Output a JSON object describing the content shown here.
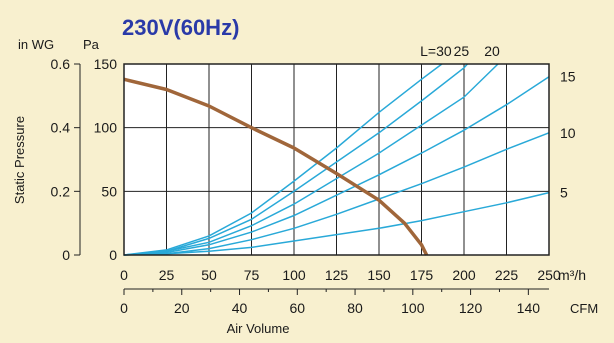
{
  "chart_data": {
    "type": "line",
    "title": "230V(60Hz)",
    "xlabel": "Air Volume",
    "ylabel": "Static Pressure",
    "x_unit_primary": "m³/h",
    "x_unit_secondary": "CFM",
    "y_unit_left_outer": "in WG",
    "y_unit_left_inner": "Pa",
    "xlim": [
      0,
      250
    ],
    "ylim": [
      0,
      150
    ],
    "x_ticks_primary": [
      0,
      25,
      50,
      75,
      100,
      125,
      150,
      175,
      200,
      225,
      250
    ],
    "x_ticks_secondary": [
      0,
      20,
      40,
      60,
      80,
      100,
      120,
      140
    ],
    "y_ticks_pa": [
      0,
      50,
      100,
      150
    ],
    "y_ticks_inwg": [
      "0",
      "0.2",
      "0.4",
      "0.6"
    ],
    "grid": true,
    "fan_curve": {
      "color": "#a0663a",
      "x": [
        0,
        25,
        50,
        75,
        100,
        125,
        150,
        165,
        175,
        178
      ],
      "y": [
        138,
        130,
        117,
        100,
        84,
        64,
        43,
        25,
        8,
        0
      ]
    },
    "system_curves": {
      "color": "#29a9d8",
      "curves": [
        {
          "label": "L=30",
          "x": [
            0,
            25,
            50,
            75,
            100,
            125,
            150,
            175,
            187
          ],
          "y": [
            0,
            4,
            15,
            33,
            58,
            84,
            112,
            138,
            150
          ]
        },
        {
          "label": "25",
          "x": [
            0,
            25,
            50,
            75,
            100,
            125,
            150,
            175,
            200,
            202
          ],
          "y": [
            0,
            3,
            13,
            28,
            50,
            73,
            96,
            121,
            147,
            150
          ]
        },
        {
          "label": "20",
          "x": [
            0,
            25,
            50,
            75,
            100,
            125,
            150,
            175,
            200,
            220
          ],
          "y": [
            0,
            3,
            10,
            23,
            40,
            60,
            80,
            102,
            124,
            150
          ]
        },
        {
          "label": "15",
          "x": [
            0,
            25,
            50,
            75,
            100,
            125,
            150,
            175,
            200,
            225,
            250
          ],
          "y": [
            0,
            2,
            8,
            18,
            31,
            47,
            63,
            80,
            98,
            118,
            140
          ]
        },
        {
          "label": "10",
          "x": [
            0,
            25,
            50,
            75,
            100,
            125,
            150,
            175,
            200,
            225,
            250
          ],
          "y": [
            0,
            1,
            5,
            12,
            21,
            32,
            44,
            56,
            69,
            83,
            96
          ]
        },
        {
          "label": "5",
          "x": [
            0,
            25,
            50,
            75,
            100,
            125,
            150,
            175,
            200,
            225,
            250
          ],
          "y": [
            0,
            1,
            3,
            6,
            11,
            16,
            21,
            27,
            34,
            41,
            49
          ]
        }
      ]
    }
  }
}
